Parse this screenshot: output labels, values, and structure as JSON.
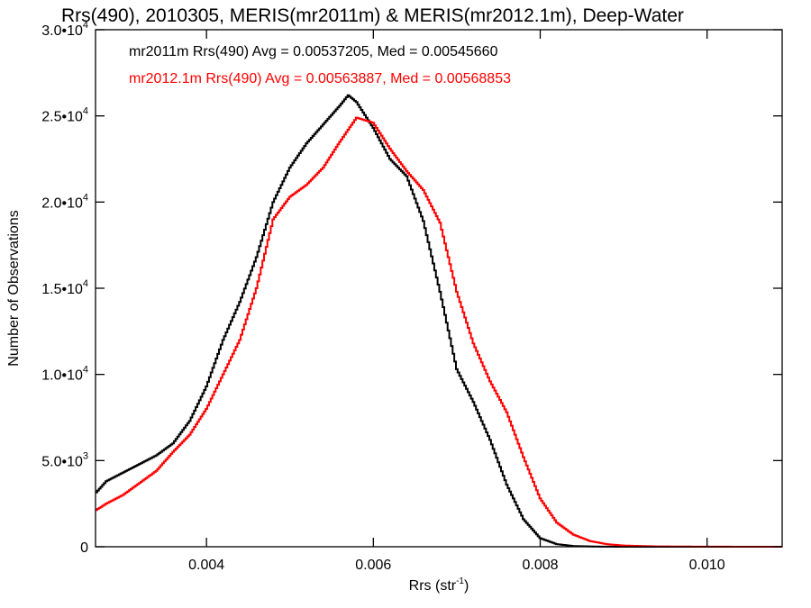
{
  "chart_data": {
    "type": "line",
    "title": "Rrs(490), 2010305, MERIS(mr2011m) & MERIS(mr2012.1m), Deep-Water",
    "xlabel": "Rrs (str",
    "xlabel_sup": "-1",
    "xlabel_close": ")",
    "ylabel": "Number of Observations",
    "xlim": [
      0.00267,
      0.0109
    ],
    "ylim": [
      0,
      30000
    ],
    "x_ticks": [
      {
        "value": 0.004,
        "label": "0.004"
      },
      {
        "value": 0.006,
        "label": "0.006"
      },
      {
        "value": 0.008,
        "label": "0.008"
      },
      {
        "value": 0.01,
        "label": "0.010"
      }
    ],
    "y_ticks": [
      {
        "value": 0,
        "mant": "0",
        "exp": ""
      },
      {
        "value": 5000,
        "mant": "5.0•10",
        "exp": "3"
      },
      {
        "value": 10000,
        "mant": "1.0•10",
        "exp": "4"
      },
      {
        "value": 15000,
        "mant": "1.5•10",
        "exp": "4"
      },
      {
        "value": 20000,
        "mant": "2.0•10",
        "exp": "4"
      },
      {
        "value": 25000,
        "mant": "2.5•10",
        "exp": "4"
      },
      {
        "value": 30000,
        "mant": "3.0•10",
        "exp": "4"
      }
    ],
    "annotations": [
      {
        "text": "mr2011m Rrs(490) Avg = 0.00537205, Med = 0.00545660",
        "color": "#000000"
      },
      {
        "text": "mr2012.1m Rrs(490) Avg = 0.00563887, Med = 0.00568853",
        "color": "#ff0000"
      }
    ],
    "series": [
      {
        "color": "#000000",
        "points": [
          [
            0.00267,
            3100
          ],
          [
            0.0028,
            3800
          ],
          [
            0.003,
            4300
          ],
          [
            0.0032,
            4800
          ],
          [
            0.0034,
            5300
          ],
          [
            0.0036,
            6000
          ],
          [
            0.0038,
            7300
          ],
          [
            0.004,
            9300
          ],
          [
            0.0042,
            12000
          ],
          [
            0.0044,
            14200
          ],
          [
            0.0046,
            16800
          ],
          [
            0.0048,
            20000
          ],
          [
            0.005,
            22000
          ],
          [
            0.0052,
            23400
          ],
          [
            0.0054,
            24500
          ],
          [
            0.0056,
            25600
          ],
          [
            0.0057,
            26200
          ],
          [
            0.0058,
            25800
          ],
          [
            0.006,
            24300
          ],
          [
            0.0062,
            22500
          ],
          [
            0.0064,
            21500
          ],
          [
            0.0066,
            18900
          ],
          [
            0.0068,
            14800
          ],
          [
            0.007,
            10300
          ],
          [
            0.0072,
            8400
          ],
          [
            0.0074,
            6200
          ],
          [
            0.0076,
            3600
          ],
          [
            0.0078,
            1600
          ],
          [
            0.008,
            500
          ],
          [
            0.0082,
            150
          ],
          [
            0.0084,
            40
          ],
          [
            0.0087,
            10
          ],
          [
            0.009,
            0
          ],
          [
            0.0109,
            0
          ]
        ]
      },
      {
        "color": "#ff0000",
        "points": [
          [
            0.00267,
            2100
          ],
          [
            0.0028,
            2500
          ],
          [
            0.003,
            3000
          ],
          [
            0.0032,
            3700
          ],
          [
            0.0034,
            4400
          ],
          [
            0.0036,
            5500
          ],
          [
            0.0038,
            6500
          ],
          [
            0.004,
            8000
          ],
          [
            0.0042,
            10000
          ],
          [
            0.0044,
            12000
          ],
          [
            0.0046,
            15000
          ],
          [
            0.0048,
            19000
          ],
          [
            0.005,
            20300
          ],
          [
            0.0052,
            21000
          ],
          [
            0.0054,
            22000
          ],
          [
            0.0056,
            23500
          ],
          [
            0.0058,
            24900
          ],
          [
            0.006,
            24600
          ],
          [
            0.0062,
            23100
          ],
          [
            0.0064,
            21800
          ],
          [
            0.0066,
            20700
          ],
          [
            0.0068,
            18800
          ],
          [
            0.007,
            14800
          ],
          [
            0.0072,
            11800
          ],
          [
            0.0074,
            9600
          ],
          [
            0.0076,
            7800
          ],
          [
            0.0078,
            5200
          ],
          [
            0.008,
            2800
          ],
          [
            0.0082,
            1400
          ],
          [
            0.0084,
            700
          ],
          [
            0.0086,
            330
          ],
          [
            0.0088,
            150
          ],
          [
            0.009,
            70
          ],
          [
            0.0094,
            20
          ],
          [
            0.01,
            5
          ],
          [
            0.0109,
            0
          ]
        ]
      }
    ]
  }
}
